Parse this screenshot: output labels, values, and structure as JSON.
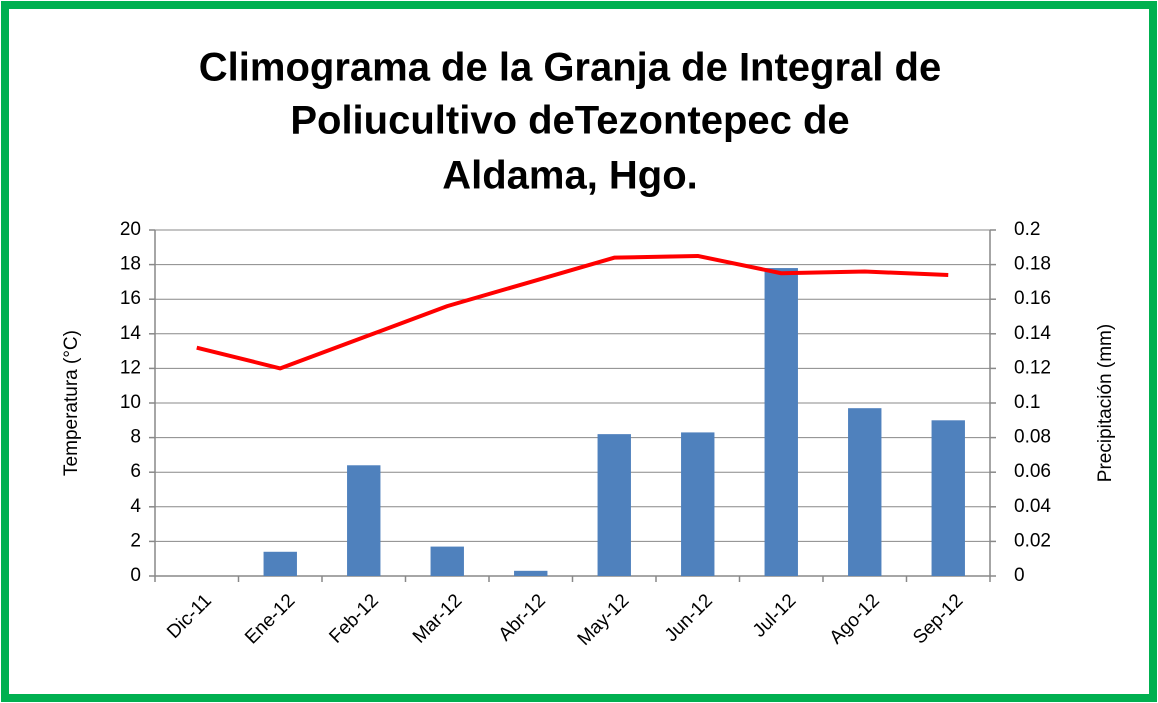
{
  "chart_data": {
    "type": "bar_line",
    "title": [
      "Climograma de la Granja de Integral de",
      "Poliucultivo deTezontepec de",
      "Aldama, Hgo."
    ],
    "ylabel": "Temperatura (°C)",
    "y2label": "Precipitación (mm)",
    "categories": [
      "Dic-11",
      "Ene-12",
      "Feb-12",
      "Mar-12",
      "Abr-12",
      "May-12",
      "Jun-12",
      "Jul-12",
      "Ago-12",
      "Sep-12"
    ],
    "series": [
      {
        "type": "bar",
        "axis": "y2",
        "color": "#4f81bd",
        "values": [
          0,
          0.014,
          0.064,
          0.017,
          0.003,
          0.082,
          0.083,
          0.178,
          0.097,
          0.09
        ]
      },
      {
        "type": "line",
        "axis": "y",
        "color": "#ff0000",
        "values": [
          13.2,
          12.0,
          13.8,
          15.6,
          17.0,
          18.4,
          18.5,
          17.5,
          17.6,
          17.4
        ]
      }
    ],
    "ylim": [
      0,
      20
    ],
    "yticks": [
      0,
      2,
      4,
      6,
      8,
      10,
      12,
      14,
      16,
      18,
      20
    ],
    "y2lim": [
      0,
      0.2
    ],
    "y2ticks": [
      0,
      0.02,
      0.04,
      0.06,
      0.08,
      0.1,
      0.12,
      0.14,
      0.16,
      0.18,
      0.2
    ],
    "grid": true
  }
}
